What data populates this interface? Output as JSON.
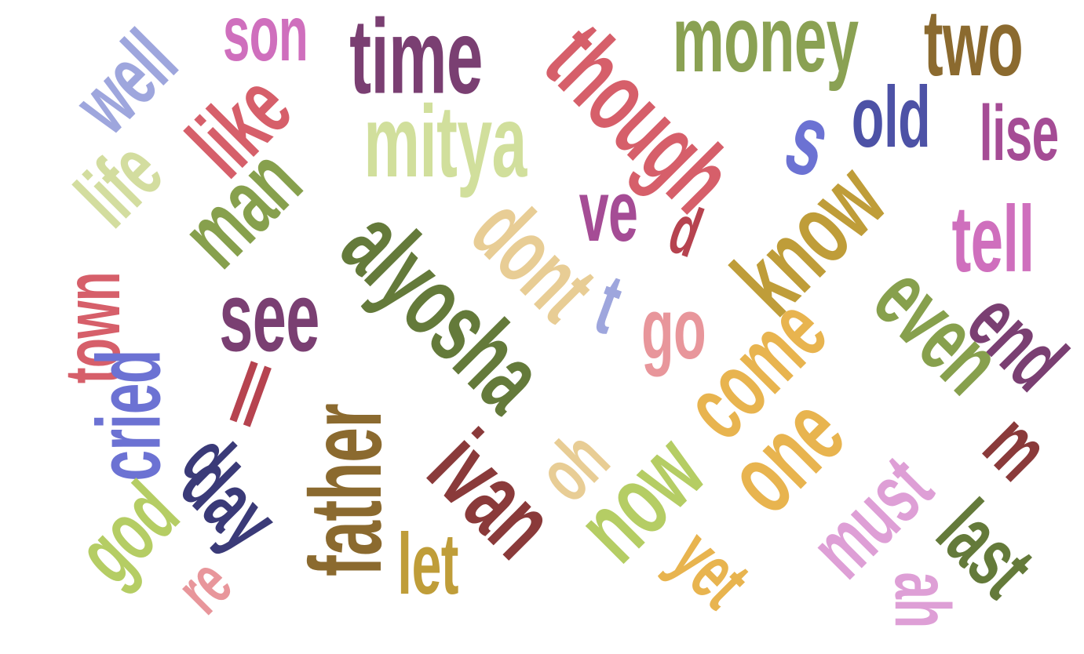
{
  "words": [
    {
      "id": "well",
      "text": "well",
      "color": "#9ea6dd"
    },
    {
      "id": "son",
      "text": "son",
      "color": "#cf6fbd"
    },
    {
      "id": "time",
      "text": "time",
      "color": "#7a3f72"
    },
    {
      "id": "though",
      "text": "though",
      "color": "#d65f6a"
    },
    {
      "id": "money",
      "text": "money",
      "color": "#8aa153"
    },
    {
      "id": "two",
      "text": "two",
      "color": "#8b6a2f"
    },
    {
      "id": "old",
      "text": "old",
      "color": "#4d52a6"
    },
    {
      "id": "lise",
      "text": "lise",
      "color": "#a54c95"
    },
    {
      "id": "s",
      "text": "s",
      "color": "#6c72d3"
    },
    {
      "id": "like",
      "text": "like",
      "color": "#d65f6a"
    },
    {
      "id": "life",
      "text": "life",
      "color": "#d3dd9f"
    },
    {
      "id": "mitya",
      "text": "mitya",
      "color": "#d1df9c"
    },
    {
      "id": "man",
      "text": "man",
      "color": "#87a04d"
    },
    {
      "id": "alyosha",
      "text": "alyosha",
      "color": "#647a3a"
    },
    {
      "id": "ve",
      "text": "ve",
      "color": "#a54c95"
    },
    {
      "id": "d1",
      "text": "d",
      "color": "#b6434f"
    },
    {
      "id": "know",
      "text": "know",
      "color": "#bf9d39"
    },
    {
      "id": "tell",
      "text": "tell",
      "color": "#cf6fbd"
    },
    {
      "id": "dont",
      "text": "dont",
      "color": "#e8cd95"
    },
    {
      "id": "town",
      "text": "town",
      "color": "#d65f6a"
    },
    {
      "id": "see",
      "text": "see",
      "color": "#7a3f72"
    },
    {
      "id": "t",
      "text": "t",
      "color": "#9ea6dd"
    },
    {
      "id": "go",
      "text": "go",
      "color": "#e8969b"
    },
    {
      "id": "come",
      "text": "come",
      "color": "#e8b44f"
    },
    {
      "id": "even",
      "text": "even",
      "color": "#87a04d"
    },
    {
      "id": "end",
      "text": "end",
      "color": "#7a3f72"
    },
    {
      "id": "cried",
      "text": "cried",
      "color": "#6c72d3"
    },
    {
      "id": "ll",
      "text": "ll",
      "color": "#b6434f"
    },
    {
      "id": "d2",
      "text": "d",
      "color": "#3a3a78"
    },
    {
      "id": "day",
      "text": "day",
      "color": "#3a3a78"
    },
    {
      "id": "father",
      "text": "father",
      "color": "#8b6a2f"
    },
    {
      "id": "ivan",
      "text": "ivan",
      "color": "#8a3a3a"
    },
    {
      "id": "oh",
      "text": "oh",
      "color": "#e8cd95"
    },
    {
      "id": "now",
      "text": "now",
      "color": "#b5cd64"
    },
    {
      "id": "one",
      "text": "one",
      "color": "#e8b44f"
    },
    {
      "id": "m",
      "text": "m",
      "color": "#8a3a3a"
    },
    {
      "id": "god",
      "text": "god",
      "color": "#b5cd64"
    },
    {
      "id": "let",
      "text": "let",
      "color": "#bf9d39"
    },
    {
      "id": "yet",
      "text": "yet",
      "color": "#e8b44f"
    },
    {
      "id": "must",
      "text": "must",
      "color": "#de9fd6"
    },
    {
      "id": "ah",
      "text": "ah",
      "color": "#de9fd6"
    },
    {
      "id": "last",
      "text": "last",
      "color": "#647a3a"
    },
    {
      "id": "re",
      "text": "re",
      "color": "#e8969b"
    }
  ]
}
